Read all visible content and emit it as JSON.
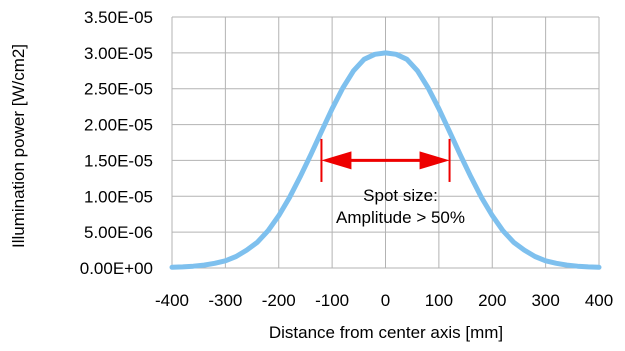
{
  "chart_data": {
    "type": "line",
    "title": "",
    "xlabel": "Distance from center axis [mm]",
    "ylabel": "Illumination power [W/cm2]",
    "xlim": [
      -400,
      400
    ],
    "ylim": [
      0,
      3.5e-05
    ],
    "xticks": [
      -400,
      -300,
      -200,
      -100,
      0,
      100,
      200,
      300,
      400
    ],
    "xtick_labels": [
      "-400",
      "-300",
      "-200",
      "-100",
      "0",
      "100",
      "200",
      "300",
      "400"
    ],
    "yticks": [
      0,
      5e-06,
      1e-05,
      1.5e-05,
      2e-05,
      2.5e-05,
      3e-05,
      3.5e-05
    ],
    "ytick_labels": [
      "0.00E+00",
      "5.00E-06",
      "1.00E-05",
      "1.50E-05",
      "2.00E-05",
      "2.50E-05",
      "3.00E-05",
      "3.50E-05"
    ],
    "grid": true,
    "series": [
      {
        "color": "#7ec0ee",
        "x": [
          -400,
          -380,
          -360,
          -340,
          -320,
          -300,
          -280,
          -260,
          -240,
          -220,
          -200,
          -180,
          -160,
          -140,
          -120,
          -100,
          -80,
          -60,
          -40,
          -20,
          0,
          20,
          40,
          60,
          80,
          100,
          120,
          140,
          160,
          180,
          200,
          220,
          240,
          260,
          280,
          300,
          320,
          340,
          360,
          380,
          400
        ],
        "y": [
          1e-07,
          1.5e-07,
          2.5e-07,
          4e-07,
          6.5e-07,
          1e-06,
          1.6e-06,
          2.5e-06,
          3.6e-06,
          5.2e-06,
          7.3e-06,
          9.8e-06,
          1.27e-05,
          1.58e-05,
          1.9e-05,
          2.22e-05,
          2.51e-05,
          2.75e-05,
          2.91e-05,
          2.98e-05,
          3e-05,
          2.98e-05,
          2.91e-05,
          2.75e-05,
          2.51e-05,
          2.22e-05,
          1.9e-05,
          1.58e-05,
          1.27e-05,
          9.8e-06,
          7.3e-06,
          5.2e-06,
          3.6e-06,
          2.5e-06,
          1.6e-06,
          1e-06,
          6.5e-07,
          4e-07,
          2.5e-07,
          1.5e-07,
          1e-07
        ]
      }
    ],
    "annotation": {
      "lines": [
        "Spot size:",
        "Amplitude > 50%"
      ],
      "color": "#ee0000",
      "arrow_x": [
        -120,
        120
      ],
      "arrow_y": 1.5e-05,
      "marker_y_range": [
        1.2e-05,
        1.8e-05
      ]
    }
  }
}
